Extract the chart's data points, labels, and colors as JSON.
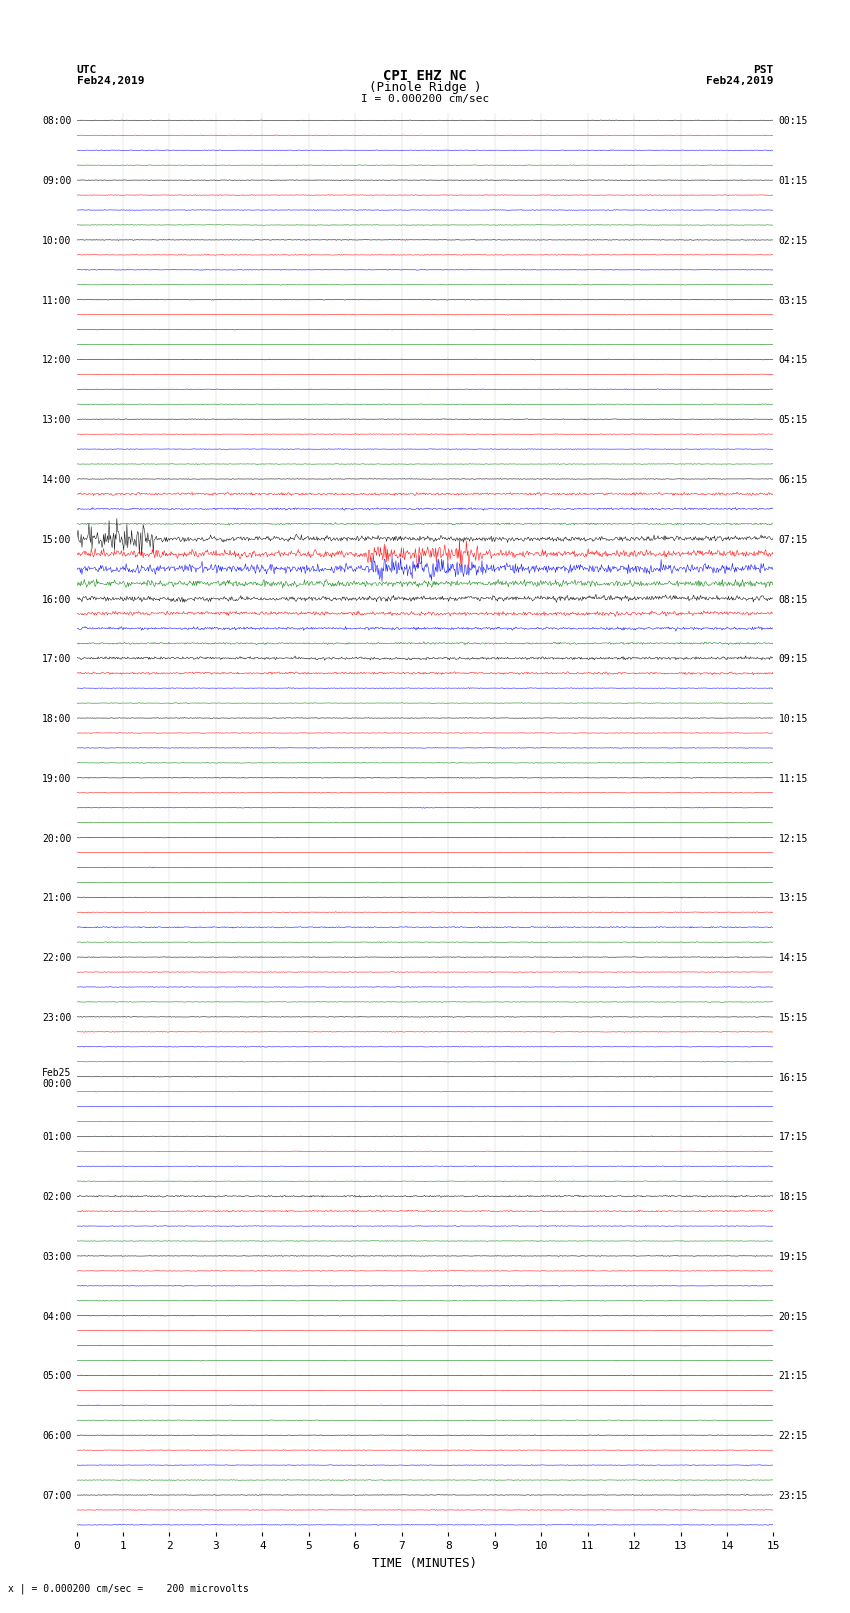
{
  "title_line1": "CPI EHZ NC",
  "title_line2": "(Pinole Ridge )",
  "scale_label": "I = 0.000200 cm/sec",
  "left_label_top": "UTC",
  "left_label_date": "Feb24,2019",
  "right_label_top": "PST",
  "right_label_date": "Feb24,2019",
  "bottom_label": "TIME (MINUTES)",
  "bottom_note": "x | = 0.000200 cm/sec =    200 microvolts",
  "xlabel_ticks": [
    0,
    1,
    2,
    3,
    4,
    5,
    6,
    7,
    8,
    9,
    10,
    11,
    12,
    13,
    14,
    15
  ],
  "utc_times": [
    "08:00",
    "",
    "",
    "",
    "09:00",
    "",
    "",
    "",
    "10:00",
    "",
    "",
    "",
    "11:00",
    "",
    "",
    "",
    "12:00",
    "",
    "",
    "",
    "13:00",
    "",
    "",
    "",
    "14:00",
    "",
    "",
    "",
    "15:00",
    "",
    "",
    "",
    "16:00",
    "",
    "",
    "",
    "17:00",
    "",
    "",
    "",
    "18:00",
    "",
    "",
    "",
    "19:00",
    "",
    "",
    "",
    "20:00",
    "",
    "",
    "",
    "21:00",
    "",
    "",
    "",
    "22:00",
    "",
    "",
    "",
    "23:00",
    "",
    "",
    "",
    "Feb25\n00:00",
    "",
    "",
    "",
    "01:00",
    "",
    "",
    "",
    "02:00",
    "",
    "",
    "",
    "03:00",
    "",
    "",
    "",
    "04:00",
    "",
    "",
    "",
    "05:00",
    "",
    "",
    "",
    "06:00",
    "",
    "",
    "",
    "07:00",
    "",
    ""
  ],
  "pst_times": [
    "00:15",
    "",
    "",
    "",
    "01:15",
    "",
    "",
    "",
    "02:15",
    "",
    "",
    "",
    "03:15",
    "",
    "",
    "",
    "04:15",
    "",
    "",
    "",
    "05:15",
    "",
    "",
    "",
    "06:15",
    "",
    "",
    "",
    "07:15",
    "",
    "",
    "",
    "08:15",
    "",
    "",
    "",
    "09:15",
    "",
    "",
    "",
    "10:15",
    "",
    "",
    "",
    "11:15",
    "",
    "",
    "",
    "12:15",
    "",
    "",
    "",
    "13:15",
    "",
    "",
    "",
    "14:15",
    "",
    "",
    "",
    "15:15",
    "",
    "",
    "",
    "16:15",
    "",
    "",
    "",
    "17:15",
    "",
    "",
    "",
    "18:15",
    "",
    "",
    "",
    "19:15",
    "",
    "",
    "",
    "20:15",
    "",
    "",
    "",
    "21:15",
    "",
    "",
    "",
    "22:15",
    "",
    "",
    "",
    "23:15",
    "",
    ""
  ],
  "n_rows": 95,
  "n_cols": 900,
  "colors_cycle": [
    "black",
    "red",
    "blue",
    "green"
  ],
  "background_color": "white",
  "fig_width": 8.5,
  "fig_height": 16.13,
  "dpi": 100
}
